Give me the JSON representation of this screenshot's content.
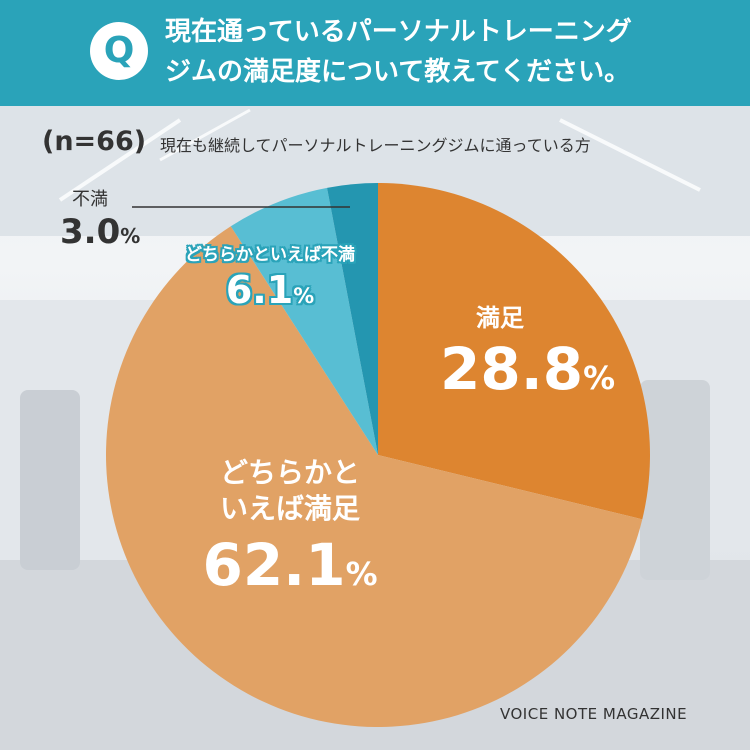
{
  "header": {
    "badge": "Q",
    "question_line1": "現在通っているパーソナルトレーニング",
    "question_line2": "ジムの満足度について教えてください。"
  },
  "sample": {
    "n_label": "(n=66)",
    "description": "現在も継続してパーソナルトレーニングジムに通っている方"
  },
  "chart_data": {
    "type": "pie",
    "unit": "%",
    "slices": [
      {
        "name": "満足",
        "value": 28.8,
        "value_text": "28.8",
        "color": "#dd8530"
      },
      {
        "name": "どちらかといえば満足",
        "name_line1": "どちらかと",
        "name_line2": "いえば満足",
        "value": 62.1,
        "value_text": "62.1",
        "color": "#e1a265"
      },
      {
        "name": "どちらかといえば不満",
        "value": 6.1,
        "value_text": "6.1",
        "color": "#58bed3"
      },
      {
        "name": "不満",
        "value": 3.0,
        "value_text": "3.0",
        "color": "#2496b0"
      }
    ],
    "start": "top",
    "direction": "clockwise"
  },
  "brand": "VOICE NOTE MAGAZINE"
}
